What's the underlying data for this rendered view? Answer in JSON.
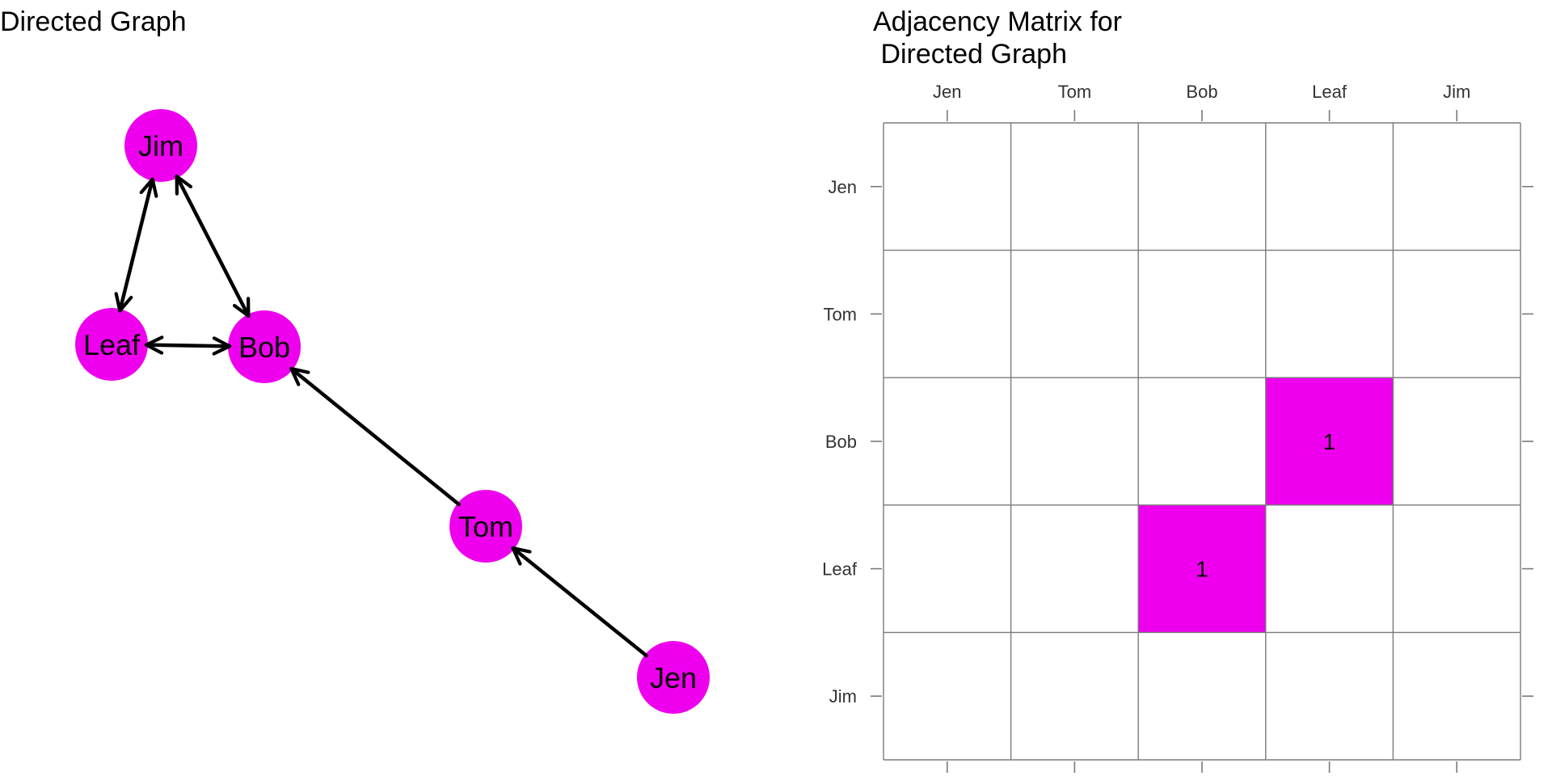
{
  "graph": {
    "title": "Directed Graph",
    "node_color": "#ee00ee",
    "nodes": [
      {
        "id": "Jim",
        "label": "Jim"
      },
      {
        "id": "Leaf",
        "label": "Leaf"
      },
      {
        "id": "Bob",
        "label": "Bob"
      },
      {
        "id": "Tom",
        "label": "Tom"
      },
      {
        "id": "Jen",
        "label": "Jen"
      }
    ],
    "edges": [
      {
        "from": "Jim",
        "to": "Leaf",
        "bidirectional": true
      },
      {
        "from": "Jim",
        "to": "Bob",
        "bidirectional": true
      },
      {
        "from": "Leaf",
        "to": "Bob",
        "bidirectional": true
      },
      {
        "from": "Tom",
        "to": "Bob",
        "bidirectional": false
      },
      {
        "from": "Jen",
        "to": "Tom",
        "bidirectional": false
      }
    ]
  },
  "matrix": {
    "title_line1": "Adjacency Matrix for",
    "title_line2": " Directed Graph",
    "columns": [
      "Jen",
      "Tom",
      "Bob",
      "Leaf",
      "Jim"
    ],
    "rows": [
      "Jen",
      "Tom",
      "Bob",
      "Leaf",
      "Jim"
    ],
    "fill_color": "#ee00ee",
    "cells": [
      {
        "row": "Bob",
        "col": "Leaf",
        "value": "1"
      },
      {
        "row": "Leaf",
        "col": "Bob",
        "value": "1"
      }
    ]
  }
}
